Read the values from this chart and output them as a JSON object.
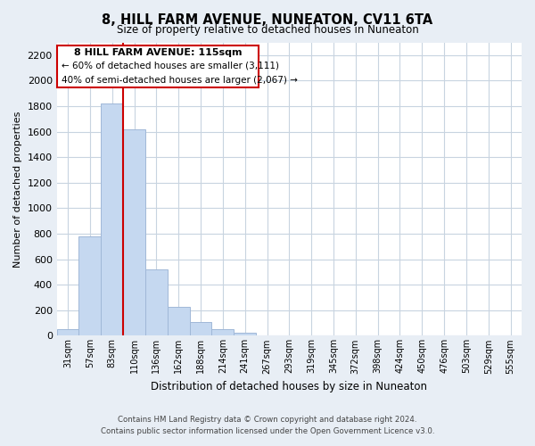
{
  "title": "8, HILL FARM AVENUE, NUNEATON, CV11 6TA",
  "subtitle": "Size of property relative to detached houses in Nuneaton",
  "xlabel": "Distribution of detached houses by size in Nuneaton",
  "ylabel": "Number of detached properties",
  "bar_labels": [
    "31sqm",
    "57sqm",
    "83sqm",
    "110sqm",
    "136sqm",
    "162sqm",
    "188sqm",
    "214sqm",
    "241sqm",
    "267sqm",
    "293sqm",
    "319sqm",
    "345sqm",
    "372sqm",
    "398sqm",
    "424sqm",
    "450sqm",
    "476sqm",
    "503sqm",
    "529sqm",
    "555sqm"
  ],
  "bar_values": [
    50,
    780,
    1820,
    1620,
    520,
    230,
    105,
    55,
    25,
    0,
    0,
    0,
    0,
    0,
    0,
    0,
    0,
    0,
    0,
    0,
    0
  ],
  "bar_color": "#c5d8f0",
  "bar_edge_color": "#a0b8d8",
  "ylim": [
    0,
    2300
  ],
  "yticks": [
    0,
    200,
    400,
    600,
    800,
    1000,
    1200,
    1400,
    1600,
    1800,
    2000,
    2200
  ],
  "vline_color": "#cc0000",
  "annotation_title": "8 HILL FARM AVENUE: 115sqm",
  "annotation_line1": "← 60% of detached houses are smaller (3,111)",
  "annotation_line2": "40% of semi-detached houses are larger (2,067) →",
  "footer_line1": "Contains HM Land Registry data © Crown copyright and database right 2024.",
  "footer_line2": "Contains public sector information licensed under the Open Government Licence v3.0.",
  "bg_color": "#e8eef5",
  "plot_bg_color": "#ffffff",
  "grid_color": "#c8d4e0"
}
